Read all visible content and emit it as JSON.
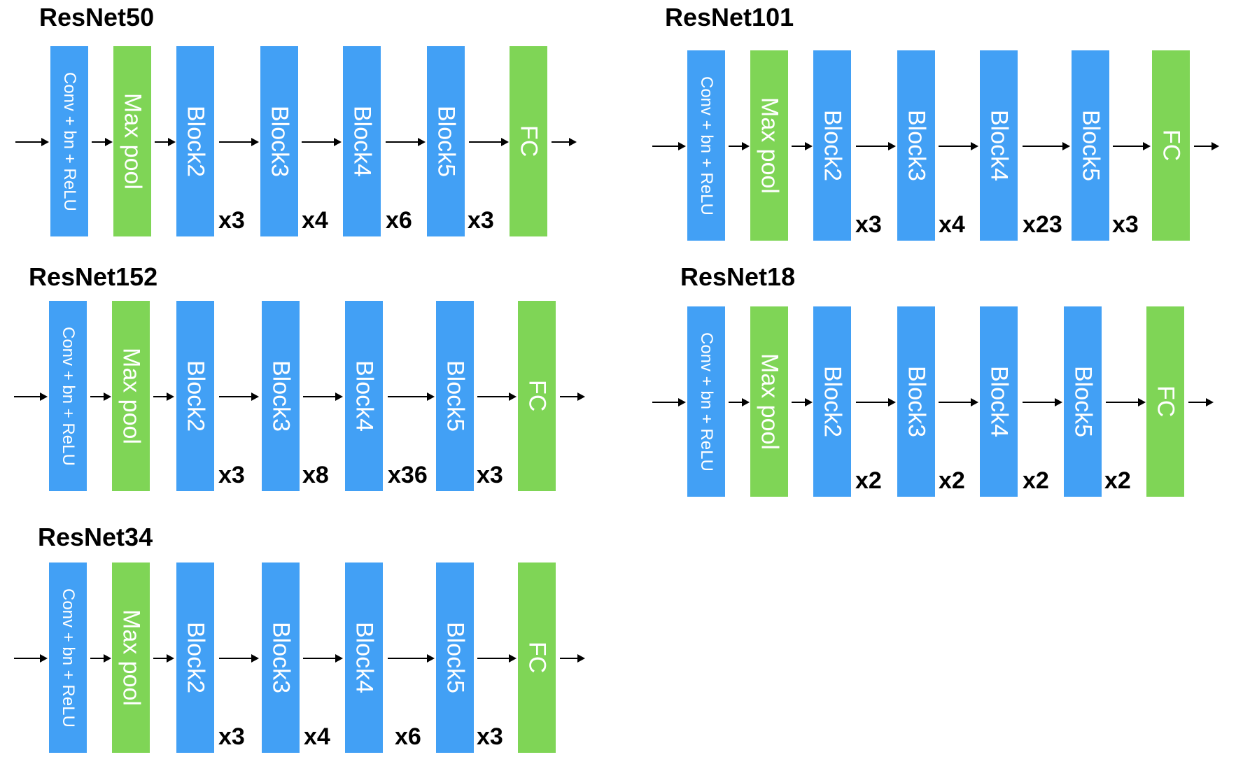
{
  "labels": {
    "conv": "Conv + bn + ReLU",
    "maxpool": "Max pool",
    "block2": "Block2",
    "block3": "Block3",
    "block4": "Block4",
    "block5": "Block5",
    "fc": "FC"
  },
  "colors": {
    "block": "#42a0f5",
    "layer": "#7fd556"
  },
  "networks": [
    {
      "id": "resnet50",
      "title": "ResNet50",
      "repeats": [
        "x3",
        "x4",
        "x6",
        "x3"
      ]
    },
    {
      "id": "resnet101",
      "title": "ResNet101",
      "repeats": [
        "x3",
        "x4",
        "x23",
        "x3"
      ]
    },
    {
      "id": "resnet152",
      "title": "ResNet152",
      "repeats": [
        "x3",
        "x8",
        "x36",
        "x3"
      ]
    },
    {
      "id": "resnet18",
      "title": "ResNet18",
      "repeats": [
        "x2",
        "x2",
        "x2",
        "x2"
      ]
    },
    {
      "id": "resnet34",
      "title": "ResNet34",
      "repeats": [
        "x3",
        "x4",
        "x6",
        "x3"
      ]
    }
  ]
}
